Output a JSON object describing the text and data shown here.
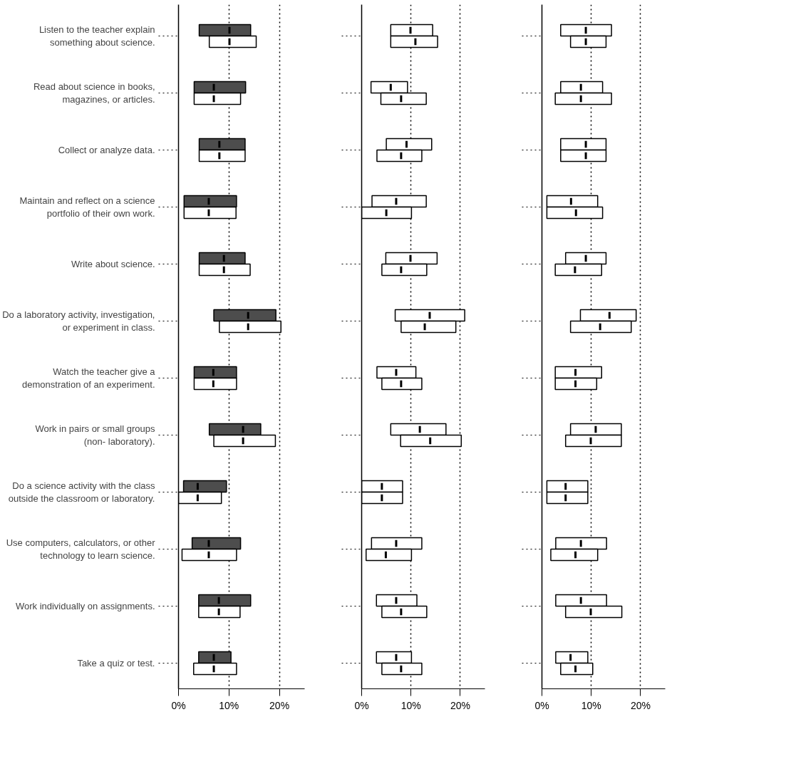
{
  "chart_data": [
    {
      "type": "box",
      "orientation": "horizontal",
      "grid": "x",
      "xlim": [
        0,
        25
      ],
      "xticks": [
        {
          "value": 0,
          "label": "0%"
        },
        {
          "value": 10,
          "label": "10%"
        },
        {
          "value": 20,
          "label": "20%"
        }
      ],
      "categories": [
        "Listen to the teacher explain\nsomething about science.",
        "Read about science in books,\nmagazines, or articles.",
        "Collect or analyze data.",
        "Maintain and reflect on a science\nportfolio of their own work.",
        "Write about science.",
        "Do a laboratory activity, investigation,\nor experiment in class.",
        "Watch the teacher give a\ndemonstration of an experiment.",
        "Work in pairs or small groups\n(non- laboratory).",
        "Do a science activity with the class\noutside the classroom or laboratory.",
        "Use computers, calculators, or other\ntechnology to learn science.",
        "Work individually on assignments.",
        "Take a quiz or test."
      ],
      "series": [
        {
          "color": "#4d4d4d",
          "boxes": [
            {
              "low": 4.1,
              "q1": 4.1,
              "median": 10.1,
              "q3": 14.3,
              "high": 14.3
            },
            {
              "low": 3.1,
              "q1": 3.1,
              "median": 7.0,
              "q3": 13.3,
              "high": 13.3
            },
            {
              "low": 4.1,
              "q1": 4.1,
              "median": 8.1,
              "q3": 13.2,
              "high": 13.2
            },
            {
              "low": 1.1,
              "q1": 1.1,
              "median": 6.0,
              "q3": 11.5,
              "high": 11.5
            },
            {
              "low": 4.1,
              "q1": 4.1,
              "median": 9.0,
              "q3": 13.2,
              "high": 13.2
            },
            {
              "low": 7.0,
              "q1": 7.0,
              "median": 13.8,
              "q3": 19.3,
              "high": 19.3
            },
            {
              "low": 3.1,
              "q1": 3.1,
              "median": 6.9,
              "q3": 11.5,
              "high": 11.5
            },
            {
              "low": 6.1,
              "q1": 6.1,
              "median": 12.8,
              "q3": 16.3,
              "high": 16.3
            },
            {
              "low": 1.0,
              "q1": 1.0,
              "median": 3.8,
              "q3": 9.5,
              "high": 9.5
            },
            {
              "low": 2.7,
              "q1": 2.7,
              "median": 6.0,
              "q3": 12.3,
              "high": 12.3
            },
            {
              "low": 4.0,
              "q1": 4.0,
              "median": 8.0,
              "q3": 14.3,
              "high": 14.3
            },
            {
              "low": 4.0,
              "q1": 4.0,
              "median": 7.0,
              "q3": 10.4,
              "high": 10.4
            }
          ]
        },
        {
          "color": "#ffffff",
          "boxes": [
            {
              "low": 6.1,
              "q1": 6.1,
              "median": 10.1,
              "q3": 15.4,
              "high": 15.4
            },
            {
              "low": 3.1,
              "q1": 3.1,
              "median": 7.0,
              "q3": 12.3,
              "high": 12.3
            },
            {
              "low": 4.1,
              "q1": 4.1,
              "median": 8.1,
              "q3": 13.2,
              "high": 13.2
            },
            {
              "low": 1.1,
              "q1": 1.1,
              "median": 6.0,
              "q3": 11.4,
              "high": 11.4
            },
            {
              "low": 4.1,
              "q1": 4.1,
              "median": 9.0,
              "q3": 14.2,
              "high": 14.2
            },
            {
              "low": 8.1,
              "q1": 8.1,
              "median": 13.8,
              "q3": 20.3,
              "high": 20.3
            },
            {
              "low": 3.1,
              "q1": 3.1,
              "median": 6.9,
              "q3": 11.5,
              "high": 11.5
            },
            {
              "low": 7.0,
              "q1": 7.0,
              "median": 12.8,
              "q3": 19.2,
              "high": 19.2
            },
            {
              "low": 0,
              "q1": 0,
              "median": 3.8,
              "q3": 8.5,
              "high": 8.5
            },
            {
              "low": 0.7,
              "q1": 0.7,
              "median": 6.0,
              "q3": 11.5,
              "high": 11.5
            },
            {
              "low": 4.0,
              "q1": 4.0,
              "median": 8.0,
              "q3": 12.2,
              "high": 12.2
            },
            {
              "low": 3.0,
              "q1": 3.0,
              "median": 7.0,
              "q3": 11.5,
              "high": 11.5
            }
          ]
        }
      ]
    },
    {
      "type": "box",
      "orientation": "horizontal",
      "grid": "x",
      "tick_labels": "x",
      "xlim": [
        0,
        25
      ],
      "xticks": [
        {
          "value": 0,
          "label": "0%"
        },
        {
          "value": 10,
          "label": "10%"
        },
        {
          "value": 20,
          "label": "20%"
        }
      ],
      "categories": [
        null,
        null,
        null,
        null,
        null,
        null,
        null,
        null,
        null,
        null,
        null,
        null
      ],
      "series": [
        {
          "color": "#ffffff",
          "boxes": [
            {
              "low": 5.9,
              "q1": 5.9,
              "median": 9.9,
              "q3": 14.4,
              "high": 14.4
            },
            {
              "low": 1.9,
              "q1": 1.9,
              "median": 5.9,
              "q3": 9.3,
              "high": 9.3
            },
            {
              "low": 5.0,
              "q1": 5.0,
              "median": 9.1,
              "q3": 14.2,
              "high": 14.2
            },
            {
              "low": 2.1,
              "q1": 2.1,
              "median": 7.0,
              "q3": 13.1,
              "high": 13.1
            },
            {
              "low": 4.9,
              "q1": 4.9,
              "median": 9.9,
              "q3": 15.3,
              "high": 15.3
            },
            {
              "low": 6.8,
              "q1": 6.8,
              "median": 13.8,
              "q3": 20.9,
              "high": 20.9
            },
            {
              "low": 3.1,
              "q1": 3.1,
              "median": 7.0,
              "q3": 11.0,
              "high": 11.0
            },
            {
              "low": 5.9,
              "q1": 5.9,
              "median": 11.8,
              "q3": 17.1,
              "high": 17.1
            },
            {
              "low": 0,
              "q1": 0,
              "median": 4.1,
              "q3": 8.3,
              "high": 8.3
            },
            {
              "low": 2.0,
              "q1": 2.0,
              "median": 7.0,
              "q3": 12.2,
              "high": 12.2
            },
            {
              "low": 3.0,
              "q1": 3.0,
              "median": 7.0,
              "q3": 11.2,
              "high": 11.2
            },
            {
              "low": 3.0,
              "q1": 3.0,
              "median": 7.0,
              "q3": 10.1,
              "high": 10.1
            }
          ]
        },
        {
          "color": "#ffffff",
          "boxes": [
            {
              "low": 5.9,
              "q1": 5.9,
              "median": 10.9,
              "q3": 15.4,
              "high": 15.4
            },
            {
              "low": 3.9,
              "q1": 3.9,
              "median": 8.0,
              "q3": 13.1,
              "high": 13.1
            },
            {
              "low": 3.1,
              "q1": 3.1,
              "median": 8.0,
              "q3": 12.2,
              "high": 12.2
            },
            {
              "low": 0,
              "q1": 0,
              "median": 5.0,
              "q3": 10.1,
              "high": 10.1
            },
            {
              "low": 4.1,
              "q1": 4.1,
              "median": 8.0,
              "q3": 13.2,
              "high": 13.2
            },
            {
              "low": 8.0,
              "q1": 8.0,
              "median": 12.8,
              "q3": 19.1,
              "high": 19.1
            },
            {
              "low": 4.1,
              "q1": 4.1,
              "median": 8.0,
              "q3": 12.2,
              "high": 12.2
            },
            {
              "low": 7.9,
              "q1": 7.9,
              "median": 13.9,
              "q3": 20.2,
              "high": 20.2
            },
            {
              "low": 0,
              "q1": 0,
              "median": 4.1,
              "q3": 8.3,
              "high": 8.3
            },
            {
              "low": 0.9,
              "q1": 0.9,
              "median": 4.9,
              "q3": 10.1,
              "high": 10.1
            },
            {
              "low": 4.1,
              "q1": 4.1,
              "median": 8.0,
              "q3": 13.2,
              "high": 13.2
            },
            {
              "low": 4.1,
              "q1": 4.1,
              "median": 8.0,
              "q3": 12.2,
              "high": 12.2
            }
          ]
        }
      ]
    },
    {
      "type": "box",
      "orientation": "horizontal",
      "grid": "x",
      "tick_labels": "x",
      "xlim": [
        0,
        25
      ],
      "xticks": [
        {
          "value": 0,
          "label": "0%"
        },
        {
          "value": 10,
          "label": "10%"
        },
        {
          "value": 20,
          "label": "20%"
        }
      ],
      "categories": [
        null,
        null,
        null,
        null,
        null,
        null,
        null,
        null,
        null,
        null,
        null,
        null
      ],
      "series": [
        {
          "color": "#ffffff",
          "boxes": [
            {
              "low": 3.8,
              "q1": 3.8,
              "median": 8.9,
              "q3": 14.1,
              "high": 14.1
            },
            {
              "low": 3.8,
              "q1": 3.8,
              "median": 7.9,
              "q3": 12.3,
              "high": 12.3
            },
            {
              "low": 3.8,
              "q1": 3.8,
              "median": 8.9,
              "q3": 13.0,
              "high": 13.0
            },
            {
              "low": 1.0,
              "q1": 1.0,
              "median": 5.9,
              "q3": 11.3,
              "high": 11.3
            },
            {
              "low": 4.8,
              "q1": 4.8,
              "median": 8.9,
              "q3": 13.0,
              "high": 13.0
            },
            {
              "low": 7.8,
              "q1": 7.8,
              "median": 13.7,
              "q3": 19.1,
              "high": 19.1
            },
            {
              "low": 2.7,
              "q1": 2.7,
              "median": 6.8,
              "q3": 12.1,
              "high": 12.1
            },
            {
              "low": 5.8,
              "q1": 5.8,
              "median": 10.9,
              "q3": 16.1,
              "high": 16.1
            },
            {
              "low": 1.0,
              "q1": 1.0,
              "median": 4.8,
              "q3": 9.3,
              "high": 9.3
            },
            {
              "low": 2.8,
              "q1": 2.8,
              "median": 7.9,
              "q3": 13.1,
              "high": 13.1
            },
            {
              "low": 2.8,
              "q1": 2.8,
              "median": 7.9,
              "q3": 13.1,
              "high": 13.1
            },
            {
              "low": 2.8,
              "q1": 2.8,
              "median": 5.8,
              "q3": 9.3,
              "high": 9.3
            }
          ]
        },
        {
          "color": "#ffffff",
          "boxes": [
            {
              "low": 5.8,
              "q1": 5.8,
              "median": 8.9,
              "q3": 13.0,
              "high": 13.0
            },
            {
              "low": 2.7,
              "q1": 2.7,
              "median": 7.9,
              "q3": 14.1,
              "high": 14.1
            },
            {
              "low": 3.8,
              "q1": 3.8,
              "median": 8.9,
              "q3": 13.0,
              "high": 13.0
            },
            {
              "low": 1.0,
              "q1": 1.0,
              "median": 6.9,
              "q3": 12.3,
              "high": 12.3
            },
            {
              "low": 2.7,
              "q1": 2.7,
              "median": 6.7,
              "q3": 12.1,
              "high": 12.1
            },
            {
              "low": 5.8,
              "q1": 5.8,
              "median": 11.8,
              "q3": 18.1,
              "high": 18.1
            },
            {
              "low": 2.7,
              "q1": 2.7,
              "median": 6.8,
              "q3": 11.1,
              "high": 11.1
            },
            {
              "low": 4.8,
              "q1": 4.8,
              "median": 9.9,
              "q3": 16.1,
              "high": 16.1
            },
            {
              "low": 1.0,
              "q1": 1.0,
              "median": 4.8,
              "q3": 9.3,
              "high": 9.3
            },
            {
              "low": 1.8,
              "q1": 1.8,
              "median": 6.8,
              "q3": 11.3,
              "high": 11.3
            },
            {
              "low": 4.8,
              "q1": 4.8,
              "median": 9.9,
              "q3": 16.2,
              "high": 16.2
            },
            {
              "low": 3.8,
              "q1": 3.8,
              "median": 6.8,
              "q3": 10.3,
              "high": 10.3
            }
          ]
        }
      ]
    }
  ]
}
